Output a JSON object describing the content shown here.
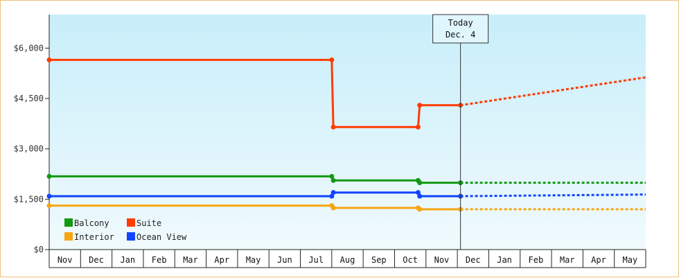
{
  "chart_data": {
    "type": "line",
    "title": "",
    "xlabel": "",
    "ylabel": "",
    "ylim": [
      0,
      7000
    ],
    "y_ticks": [
      {
        "value": 0,
        "label": "$0"
      },
      {
        "value": 1500,
        "label": "$1,500"
      },
      {
        "value": 3000,
        "label": "$3,000"
      },
      {
        "value": 4500,
        "label": "$4,500"
      },
      {
        "value": 6000,
        "label": "$6,000"
      }
    ],
    "x_months": [
      "Nov",
      "Dec",
      "Jan",
      "Feb",
      "Mar",
      "Apr",
      "May",
      "Jun",
      "Jul",
      "Aug",
      "Sep",
      "Oct",
      "Nov",
      "Dec",
      "Jan",
      "Feb",
      "Mar",
      "Apr",
      "May"
    ],
    "xlim": [
      0,
      19
    ],
    "today": {
      "line1": "Today",
      "line2": "Dec. 4",
      "x": 13.1
    },
    "grid": false,
    "legend_position": "bottom-left",
    "series": [
      {
        "name": "Balcony",
        "color": "#119911",
        "points": [
          [
            0,
            2180
          ],
          [
            9.0,
            2180
          ],
          [
            9.05,
            2060
          ],
          [
            11.75,
            2060
          ],
          [
            11.8,
            1990
          ],
          [
            13.1,
            1990
          ]
        ],
        "forecast": [
          [
            13.1,
            1990
          ],
          [
            19.0,
            1990
          ]
        ]
      },
      {
        "name": "Suite",
        "color": "#ff3b00",
        "points": [
          [
            0,
            5650
          ],
          [
            9.0,
            5650
          ],
          [
            9.05,
            3650
          ],
          [
            11.75,
            3650
          ],
          [
            11.8,
            4300
          ],
          [
            13.1,
            4300
          ]
        ],
        "forecast": [
          [
            13.1,
            4300
          ],
          [
            19.0,
            5130
          ]
        ]
      },
      {
        "name": "Interior",
        "color": "#f7a511",
        "points": [
          [
            0,
            1310
          ],
          [
            9.0,
            1310
          ],
          [
            9.05,
            1240
          ],
          [
            11.75,
            1240
          ],
          [
            11.8,
            1200
          ],
          [
            13.1,
            1200
          ]
        ],
        "forecast": [
          [
            13.1,
            1200
          ],
          [
            19.0,
            1200
          ]
        ]
      },
      {
        "name": "Ocean View",
        "color": "#1144ff",
        "points": [
          [
            0,
            1590
          ],
          [
            9.0,
            1590
          ],
          [
            9.05,
            1700
          ],
          [
            11.75,
            1700
          ],
          [
            11.8,
            1590
          ],
          [
            13.1,
            1590
          ]
        ],
        "forecast": [
          [
            13.1,
            1590
          ],
          [
            19.0,
            1640
          ]
        ]
      }
    ]
  }
}
